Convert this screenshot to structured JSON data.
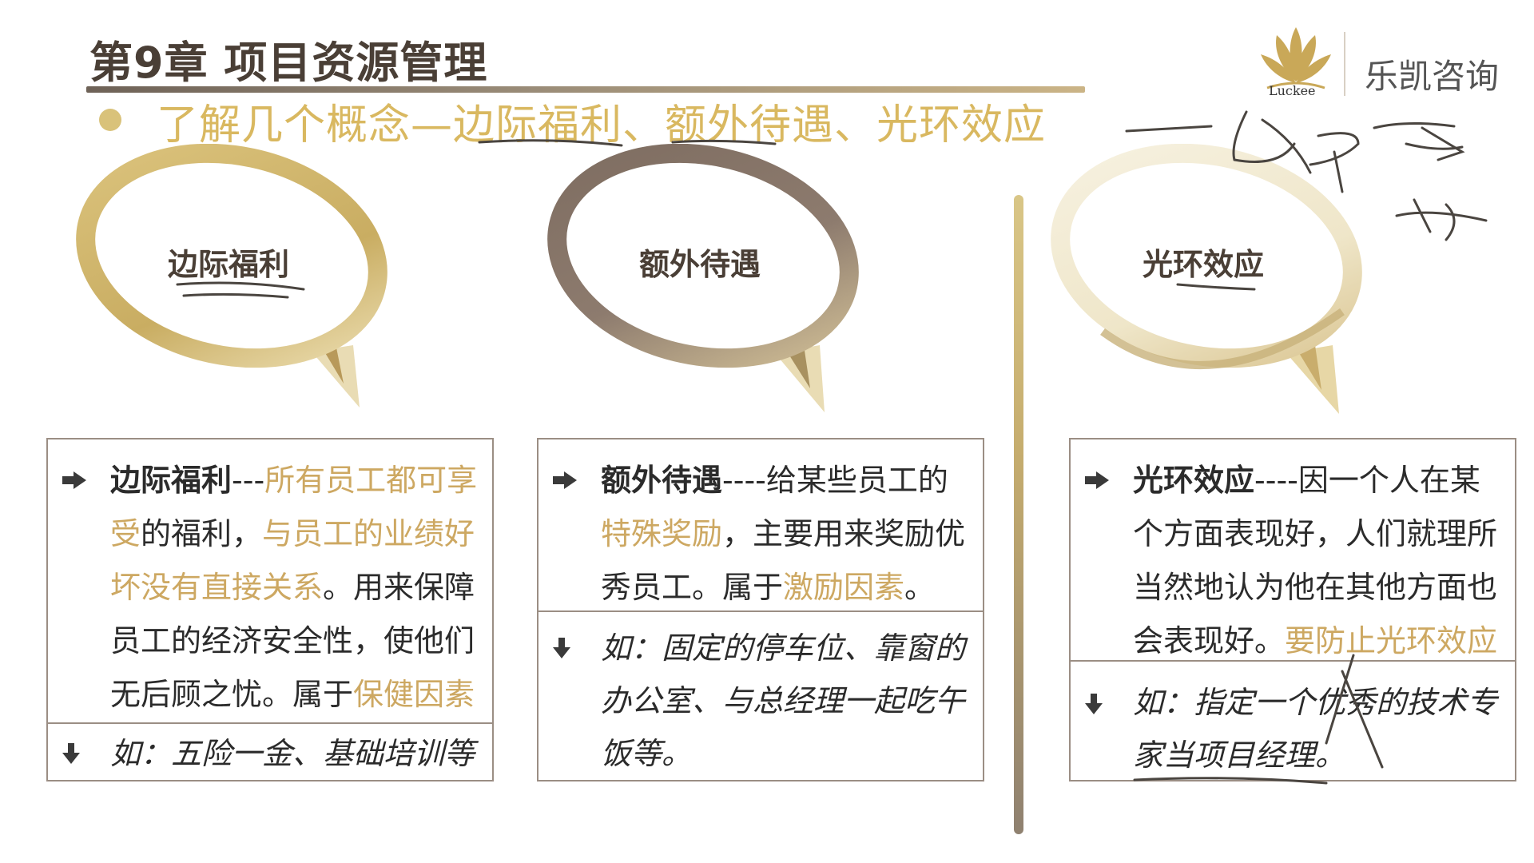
{
  "header": {
    "chapter_title": "第9章 项目资源管理",
    "subtitle": "了解几个概念—边际福利、额外待遇、光环效应"
  },
  "logo": {
    "brand": "Luckee",
    "company": "乐凯咨询"
  },
  "colors": {
    "gold": "#d9b860",
    "dark_brown": "#4a3f36",
    "taupe": "#8a7a6e",
    "highlight_text": "#cda862",
    "box_border": "#9b8e84"
  },
  "bubbles": [
    {
      "label": "边际福利",
      "color": "#d2b86c"
    },
    {
      "label": "额外待遇",
      "color": "#857468"
    },
    {
      "label": "光环效应",
      "color": "#efe7cf"
    }
  ],
  "cards": [
    {
      "term": "边际福利",
      "sep": "---",
      "desc_hl1": "所有员工都可享受",
      "desc_p1": "的福利，",
      "desc_hl2": "与员工的业绩好坏没有直接关系",
      "desc_p2": "。用来保障员工的经济安全性，使他们无后顾之忧。属于",
      "desc_hl3": "保健因素",
      "example": "如：五险一金、基础培训等"
    },
    {
      "term": "额外待遇",
      "sep": "----",
      "desc_p0": "给某些员工的",
      "desc_hl1": "特殊奖励",
      "desc_p1": "，主要用来奖励优秀员工。属于",
      "desc_hl2": "激励因素",
      "desc_p2": "。",
      "example": "如：固定的停车位、靠窗的办公室、与总经理一起吃午饭等。"
    },
    {
      "term": "光环效应",
      "sep": "----",
      "desc_p0": "因一个人在某个方面表现好，人们就理所当然地认为他在其他方面也会表现好。",
      "desc_hl1": "要防止光环效应",
      "example": "如：指定一个优秀的技术专家当项目经理。"
    }
  ]
}
